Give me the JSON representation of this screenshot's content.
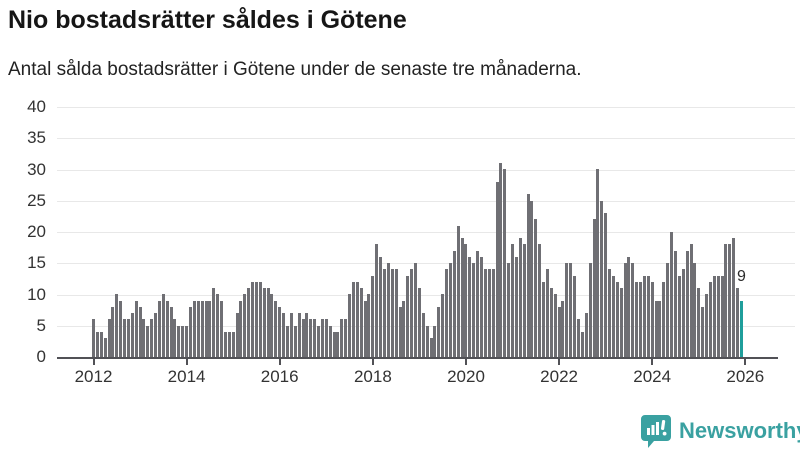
{
  "title": "Nio bostadsrätter såldes i Götene",
  "subtitle": "Antal sålda bostadsrätter i Götene under de senaste tre månaderna.",
  "annotation": {
    "last_value_label": "9"
  },
  "logo": {
    "text": "Newsworthy"
  },
  "colors": {
    "bar": "#6f6f74",
    "highlight": "#1f9e9b",
    "axis": "#515156",
    "grid": "#e8e8e8",
    "tick_text": "#333333",
    "title_text": "#161616",
    "logo_teal": "#3aa1a1"
  },
  "chart_data": {
    "type": "bar",
    "title": "Nio bostadsrätter såldes i Götene",
    "subtitle": "Antal sålda bostadsrätter i Götene under de senaste tre månaderna.",
    "xlabel": "",
    "ylabel": "",
    "x_start_month": "2012-01",
    "x_end_month": "2025-12",
    "months_per_bar": 1,
    "x_tick_labels": [
      "2012",
      "2014",
      "2016",
      "2018",
      "2020",
      "2022",
      "2024",
      "2026"
    ],
    "y_ticks": [
      0,
      5,
      10,
      15,
      20,
      25,
      30,
      35,
      40
    ],
    "ylim": [
      0,
      40
    ],
    "grid": "horizontal",
    "legend_position": "none",
    "highlight_last_bar": true,
    "last_bar_label": "9",
    "series": [
      {
        "name": "Antal sålda bostadsrätter (rullande tre månader)",
        "values": [
          6,
          4,
          4,
          3,
          6,
          8,
          10,
          9,
          6,
          6,
          7,
          9,
          8,
          6,
          5,
          6,
          7,
          9,
          10,
          9,
          8,
          6,
          5,
          5,
          5,
          8,
          9,
          9,
          9,
          9,
          9,
          11,
          10,
          9,
          4,
          4,
          4,
          7,
          9,
          10,
          11,
          12,
          12,
          12,
          11,
          11,
          10,
          9,
          8,
          7,
          5,
          7,
          5,
          7,
          6,
          7,
          6,
          6,
          5,
          6,
          6,
          5,
          4,
          4,
          6,
          6,
          10,
          12,
          12,
          11,
          9,
          10,
          13,
          18,
          16,
          14,
          15,
          14,
          14,
          8,
          9,
          13,
          14,
          15,
          11,
          7,
          5,
          3,
          5,
          8,
          10,
          14,
          15,
          17,
          21,
          19,
          18,
          16,
          15,
          17,
          16,
          14,
          14,
          14,
          28,
          31,
          30,
          15,
          18,
          16,
          19,
          18,
          26,
          25,
          22,
          18,
          12,
          14,
          11,
          10,
          8,
          9,
          15,
          15,
          13,
          6,
          4,
          7,
          15,
          22,
          30,
          25,
          23,
          14,
          13,
          12,
          11,
          15,
          16,
          15,
          12,
          12,
          13,
          13,
          12,
          9,
          9,
          12,
          15,
          20,
          17,
          13,
          14,
          17,
          18,
          15,
          11,
          8,
          10,
          12,
          13,
          13,
          13,
          18,
          18,
          19,
          11,
          9
        ]
      }
    ]
  }
}
